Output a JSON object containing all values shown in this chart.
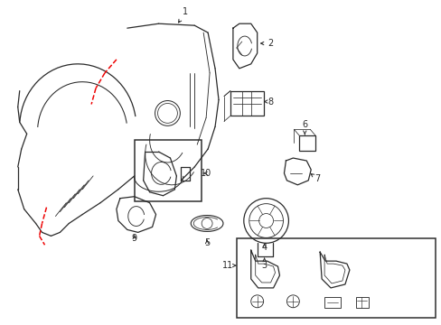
{
  "bg_color": "#ffffff",
  "line_color": "#2a2a2a",
  "red_color": "#ee0000",
  "fig_width": 4.89,
  "fig_height": 3.6,
  "dpi": 100
}
